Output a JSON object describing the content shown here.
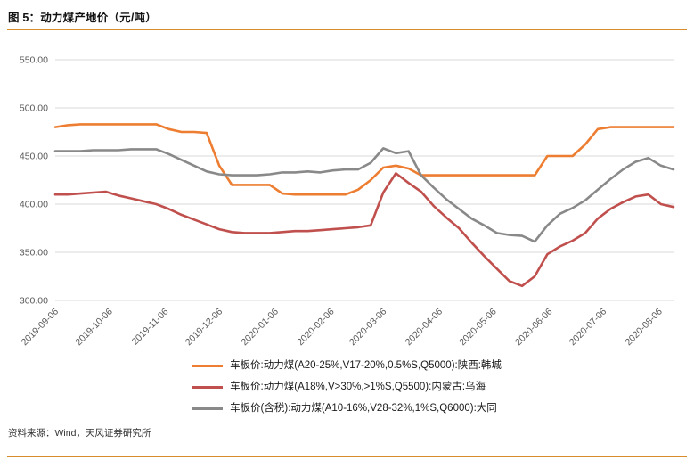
{
  "page": {
    "title": "图 5：动力煤产地价（元/吨）",
    "source": "资料来源：Wind，天风证券研究所",
    "accent_color": "#D98C2B"
  },
  "chart_data": {
    "type": "line",
    "title": "动力煤产地价（元/吨）",
    "xlabel": "",
    "ylabel": "",
    "ylim": [
      300,
      550
    ],
    "ytick_step": 50,
    "ytick_labels": [
      "300.00",
      "350.00",
      "400.00",
      "450.00",
      "500.00",
      "550.00"
    ],
    "x_tick_labels": [
      "2019-09-06",
      "2019-10-06",
      "2019-11-06",
      "2019-12-06",
      "2020-01-06",
      "2020-02-06",
      "2020-03-06",
      "2020-04-06",
      "2020-05-06",
      "2020-06-06",
      "2020-07-06",
      "2020-08-06"
    ],
    "x_tick_days": [
      0,
      30,
      61,
      91,
      122,
      153,
      182,
      213,
      243,
      274,
      304,
      335
    ],
    "x_total_days": 343,
    "sample_interval_days": 7,
    "grid": true,
    "grid_color": "#D9D9D9",
    "legend_position": "bottom",
    "series": [
      {
        "name": "车板价:动力煤(A20-25%,V17-20%,0.5%S,Q5000):陕西:韩城",
        "color": "#ED7D31",
        "values": [
          480,
          482,
          483,
          483,
          483,
          483,
          483,
          483,
          483,
          478,
          475,
          475,
          474,
          440,
          420,
          420,
          420,
          420,
          411,
          410,
          410,
          410,
          410,
          410,
          415,
          425,
          438,
          440,
          437,
          430,
          430,
          430,
          430,
          430,
          430,
          430,
          430,
          430,
          430,
          450,
          450,
          450,
          462,
          478,
          480,
          480,
          480,
          480,
          480,
          480
        ]
      },
      {
        "name": "车板价:动力煤(A18%,V>30%,>1%S,Q5500):内蒙古:乌海",
        "color": "#C0504D",
        "values": [
          410,
          410,
          411,
          412,
          413,
          409,
          406,
          403,
          400,
          395,
          389,
          384,
          379,
          374,
          371,
          370,
          370,
          370,
          371,
          372,
          372,
          373,
          374,
          375,
          376,
          378,
          412,
          432,
          422,
          413,
          398,
          386,
          375,
          360,
          346,
          333,
          320,
          315,
          325,
          348,
          356,
          362,
          370,
          385,
          395,
          402,
          408,
          410,
          400,
          397
        ]
      },
      {
        "name": "车板价(含税):动力煤(A10-16%,V28-32%,1%S,Q6000):大同",
        "color": "#898989",
        "values": [
          455,
          455,
          455,
          456,
          456,
          456,
          457,
          457,
          457,
          452,
          446,
          440,
          434,
          431,
          430,
          430,
          430,
          431,
          433,
          433,
          434,
          433,
          435,
          436,
          436,
          443,
          458,
          453,
          455,
          430,
          417,
          405,
          395,
          385,
          378,
          370,
          368,
          367,
          361,
          378,
          390,
          396,
          404,
          415,
          426,
          436,
          444,
          448,
          440,
          436
        ]
      }
    ]
  }
}
